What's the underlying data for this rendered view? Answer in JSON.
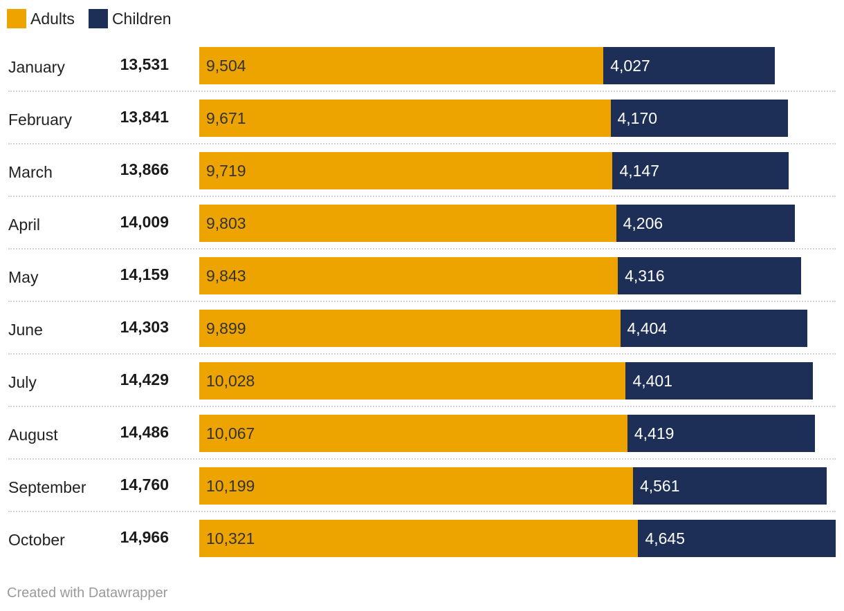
{
  "legend": [
    {
      "label": "Adults",
      "color": "#eea400"
    },
    {
      "label": "Children",
      "color": "#1d2f57"
    }
  ],
  "chart_data": {
    "type": "bar",
    "orientation": "horizontal",
    "stacked": true,
    "categories": [
      "January",
      "February",
      "March",
      "April",
      "May",
      "June",
      "July",
      "August",
      "September",
      "October"
    ],
    "totals": [
      "13,531",
      "13,841",
      "13,866",
      "14,009",
      "14,159",
      "14,303",
      "14,429",
      "14,486",
      "14,760",
      "14,966"
    ],
    "series": [
      {
        "name": "Adults",
        "color": "#eea400",
        "values": [
          9504,
          9671,
          9719,
          9803,
          9843,
          9899,
          10028,
          10067,
          10199,
          10321
        ]
      },
      {
        "name": "Children",
        "color": "#1d2f57",
        "values": [
          4027,
          4170,
          4147,
          4206,
          4316,
          4404,
          4401,
          4419,
          4561,
          4645
        ]
      }
    ],
    "xlim": [
      0,
      14966
    ],
    "legend_position": "top-left",
    "grid": false
  },
  "footer": {
    "credit": "Created with Datawrapper"
  }
}
